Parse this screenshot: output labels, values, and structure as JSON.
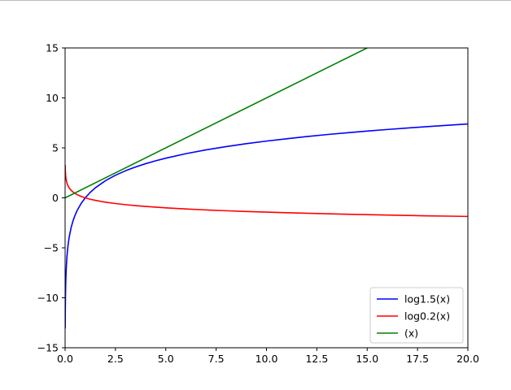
{
  "chart_data": {
    "type": "line",
    "title": "",
    "xlabel": "",
    "ylabel": "",
    "xlim": [
      0,
      20
    ],
    "ylim": [
      -15,
      15
    ],
    "xticks": [
      0.0,
      2.5,
      5.0,
      7.5,
      10.0,
      12.5,
      15.0,
      17.5,
      20.0
    ],
    "xtick_labels": [
      "0.0",
      "2.5",
      "5.0",
      "7.5",
      "10.0",
      "12.5",
      "15.0",
      "17.5",
      "20.0"
    ],
    "yticks": [
      -15,
      -10,
      -5,
      0,
      5,
      10,
      15
    ],
    "ytick_labels": [
      "−15",
      "−10",
      "−5",
      "0",
      "5",
      "10",
      "15"
    ],
    "grid": false,
    "legend_position": "bottom-right",
    "series": [
      {
        "name": "log1.5(x)",
        "color": "#0000ff",
        "x": [
          0.005,
          0.01,
          0.02,
          0.03,
          0.05,
          0.08,
          0.1,
          0.15,
          0.2,
          0.3,
          0.4,
          0.5,
          0.6,
          0.8,
          1.0,
          1.25,
          1.5,
          2.0,
          2.5,
          3.0,
          3.5,
          4.0,
          4.5,
          5.0,
          6.0,
          7.0,
          8.0,
          9.0,
          10.0,
          11.0,
          12.0,
          13.0,
          14.0,
          15.0,
          16.0,
          17.0,
          18.0,
          19.0,
          20.0
        ],
        "y": [
          -13.07,
          -11.36,
          -9.65,
          -8.65,
          -7.39,
          -6.23,
          -5.68,
          -4.68,
          -3.97,
          -2.97,
          -2.26,
          -1.71,
          -1.26,
          -0.55,
          0.0,
          0.55,
          1.0,
          1.71,
          2.26,
          2.71,
          3.09,
          3.42,
          3.71,
          3.97,
          4.42,
          4.8,
          5.13,
          5.42,
          5.68,
          5.91,
          6.13,
          6.33,
          6.51,
          6.68,
          6.84,
          6.99,
          7.13,
          7.26,
          7.39
        ]
      },
      {
        "name": "log0.2(x)",
        "color": "#ff0000",
        "x": [
          0.005,
          0.01,
          0.02,
          0.03,
          0.05,
          0.08,
          0.1,
          0.15,
          0.2,
          0.3,
          0.4,
          0.5,
          0.6,
          0.8,
          1.0,
          1.25,
          1.5,
          2.0,
          2.5,
          3.0,
          3.5,
          4.0,
          4.5,
          5.0,
          6.0,
          7.0,
          8.0,
          9.0,
          10.0,
          11.0,
          12.0,
          13.0,
          14.0,
          15.0,
          16.0,
          17.0,
          18.0,
          19.0,
          20.0
        ],
        "y": [
          3.29,
          2.86,
          2.43,
          2.18,
          1.86,
          1.57,
          1.43,
          1.18,
          1.0,
          0.75,
          0.57,
          0.43,
          0.32,
          0.14,
          0.0,
          -0.14,
          -0.25,
          -0.43,
          -0.57,
          -0.68,
          -0.78,
          -0.86,
          -0.93,
          -1.0,
          -1.11,
          -1.21,
          -1.29,
          -1.37,
          -1.43,
          -1.49,
          -1.54,
          -1.59,
          -1.64,
          -1.68,
          -1.72,
          -1.76,
          -1.8,
          -1.83,
          -1.86
        ]
      },
      {
        "name": "(x)",
        "color": "#008000",
        "x": [
          0,
          20
        ],
        "y": [
          0,
          20
        ]
      }
    ]
  }
}
